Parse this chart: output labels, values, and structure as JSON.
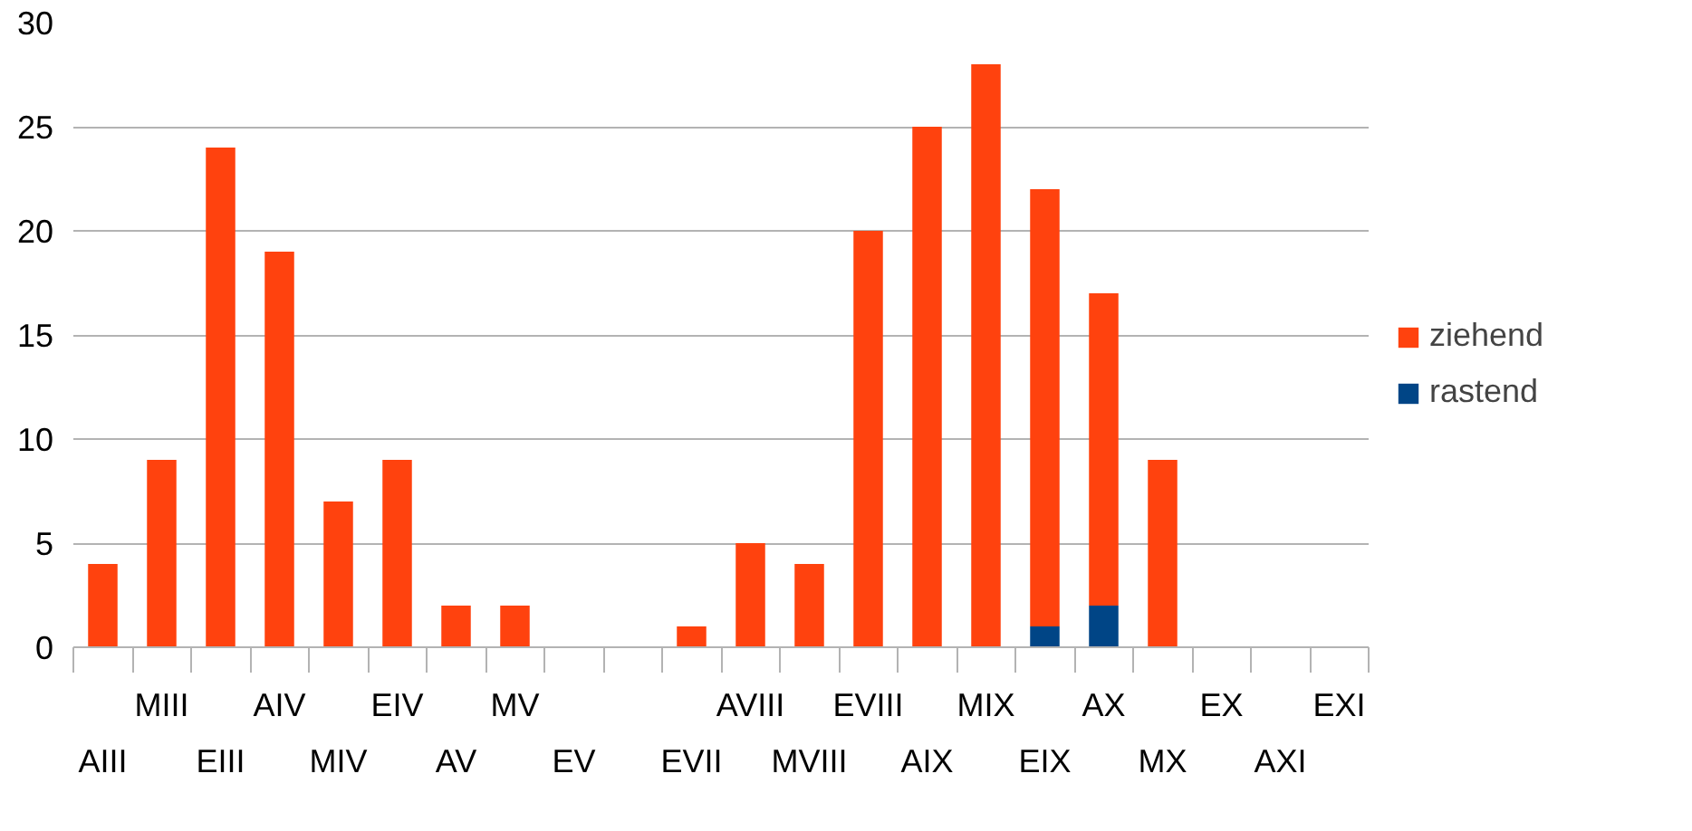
{
  "chart_data": {
    "type": "bar",
    "stacked": true,
    "categories": [
      "AIII",
      "MIII",
      "EIII",
      "AIV",
      "MIV",
      "EIV",
      "AV",
      "MV",
      "EV",
      null,
      "EVII",
      "AVIII",
      "MVIII",
      "EVIII",
      "AIX",
      "MIX",
      "EIX",
      "AX",
      "MX",
      "EX",
      "AXI",
      "EXI"
    ],
    "series": [
      {
        "name": "rastend",
        "color": "#004586",
        "values": [
          0,
          0,
          0,
          0,
          0,
          0,
          0,
          0,
          0,
          0,
          0,
          0,
          0,
          0,
          0,
          0,
          1,
          2,
          0,
          0,
          0,
          0
        ]
      },
      {
        "name": "ziehend",
        "color": "#ff420e",
        "values": [
          4,
          9,
          24,
          19,
          7,
          9,
          2,
          2,
          0,
          0,
          1,
          5,
          4,
          20,
          25,
          28,
          21,
          15,
          9,
          0,
          0,
          0
        ]
      }
    ],
    "ylim": [
      0,
      30
    ],
    "yticks": [
      0,
      5,
      10,
      15,
      20,
      25,
      30
    ],
    "grid": "y",
    "legend": "right"
  }
}
